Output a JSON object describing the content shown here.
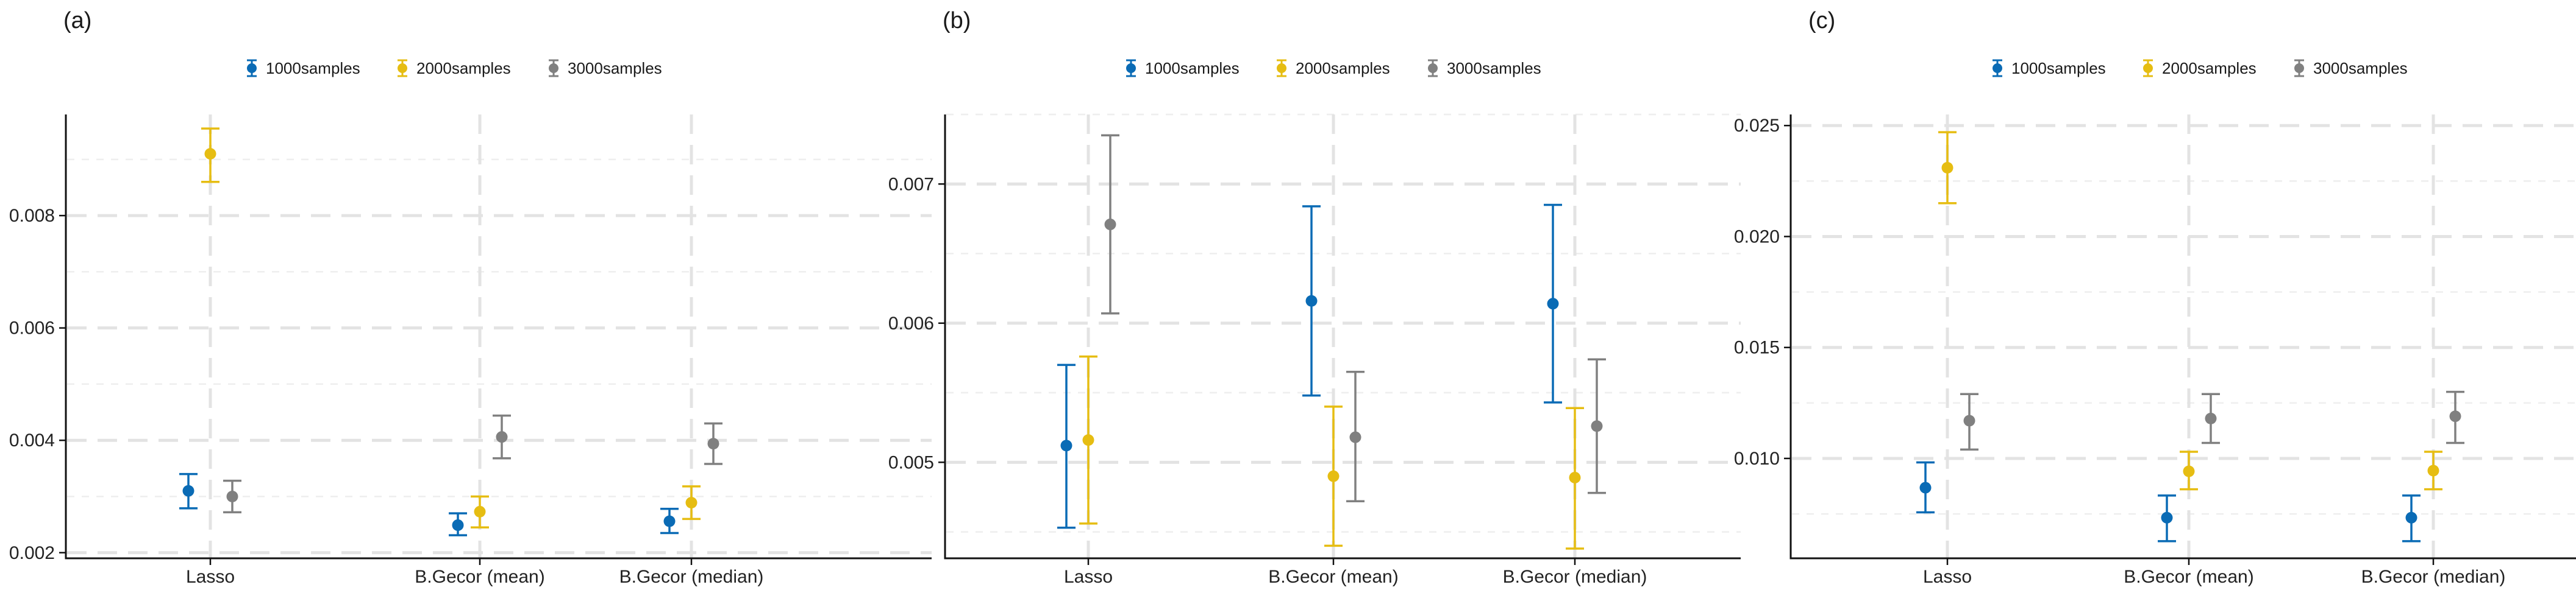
{
  "colors": {
    "1000samples": "#0a6bb5",
    "2000samples": "#e6bd12",
    "3000samples": "#808080"
  },
  "chart_data": [
    {
      "type": "errorbar",
      "panel_label": "(a)",
      "categories": [
        "Lasso",
        "B.Gecor (mean)",
        "B.Gecor (median)"
      ],
      "ylim": [
        0.0019,
        0.0098
      ],
      "yticks": [
        0.002,
        0.004,
        0.006,
        0.008
      ],
      "ytick_labels": [
        "0.002",
        "0.004",
        "0.006",
        "0.008"
      ],
      "yminor": [
        0.003,
        0.005,
        0.007,
        0.009
      ],
      "series": [
        {
          "name": "1000samples",
          "values": [
            0.0031,
            0.00249,
            0.00256
          ],
          "lower": [
            0.00279,
            0.00231,
            0.00235
          ],
          "upper": [
            0.0034,
            0.0027,
            0.00278
          ]
        },
        {
          "name": "2000samples",
          "values": [
            0.0091,
            0.00273,
            0.00289
          ],
          "lower": [
            0.0086,
            0.00245,
            0.0026
          ],
          "upper": [
            0.00955,
            0.003,
            0.00318
          ]
        },
        {
          "name": "3000samples",
          "values": [
            0.003,
            0.00406,
            0.00394
          ],
          "lower": [
            0.00272,
            0.00368,
            0.00358
          ],
          "upper": [
            0.00328,
            0.00444,
            0.0043
          ]
        }
      ]
    },
    {
      "type": "errorbar",
      "panel_label": "(b)",
      "categories": [
        "Lasso",
        "B.Gecor (mean)",
        "B.Gecor (median)"
      ],
      "ylim": [
        0.00431,
        0.0075
      ],
      "yticks": [
        0.005,
        0.006,
        0.007
      ],
      "ytick_labels": [
        "0.005",
        "0.006",
        "0.007"
      ],
      "yminor": [
        0.0045,
        0.0055,
        0.0065,
        0.0075
      ],
      "series": [
        {
          "name": "1000samples",
          "values": [
            0.00512,
            0.00616,
            0.00614
          ],
          "lower": [
            0.00453,
            0.00548,
            0.00543
          ],
          "upper": [
            0.0057,
            0.00684,
            0.00685
          ]
        },
        {
          "name": "2000samples",
          "values": [
            0.00516,
            0.0049,
            0.00489
          ],
          "lower": [
            0.00456,
            0.0044,
            0.00438
          ],
          "upper": [
            0.00576,
            0.0054,
            0.00539
          ]
        },
        {
          "name": "3000samples",
          "values": [
            0.00671,
            0.00518,
            0.00526
          ],
          "lower": [
            0.00607,
            0.00472,
            0.00478
          ],
          "upper": [
            0.00735,
            0.00565,
            0.00574
          ]
        }
      ]
    },
    {
      "type": "errorbar",
      "panel_label": "(c)",
      "categories": [
        "Lasso",
        "B.Gecor (mean)",
        "B.Gecor (median)"
      ],
      "ylim": [
        0.0055,
        0.0255
      ],
      "yticks": [
        0.01,
        0.015,
        0.02,
        0.025
      ],
      "ytick_labels": [
        "0.010",
        "0.015",
        "0.020",
        "0.025"
      ],
      "yminor": [
        0.0075,
        0.0125,
        0.0175,
        0.0225
      ],
      "series": [
        {
          "name": "1000samples",
          "values": [
            0.00868,
            0.00733,
            0.00733
          ],
          "lower": [
            0.00757,
            0.00627,
            0.00627
          ],
          "upper": [
            0.00982,
            0.00833,
            0.00833
          ]
        },
        {
          "name": "2000samples",
          "values": [
            0.0231,
            0.00942,
            0.00945
          ],
          "lower": [
            0.0215,
            0.00861,
            0.00861
          ],
          "upper": [
            0.0247,
            0.0103,
            0.0103
          ]
        },
        {
          "name": "3000samples",
          "values": [
            0.0117,
            0.0118,
            0.0119
          ],
          "lower": [
            0.0104,
            0.0107,
            0.0107
          ],
          "upper": [
            0.0129,
            0.0129,
            0.013
          ]
        }
      ]
    }
  ]
}
